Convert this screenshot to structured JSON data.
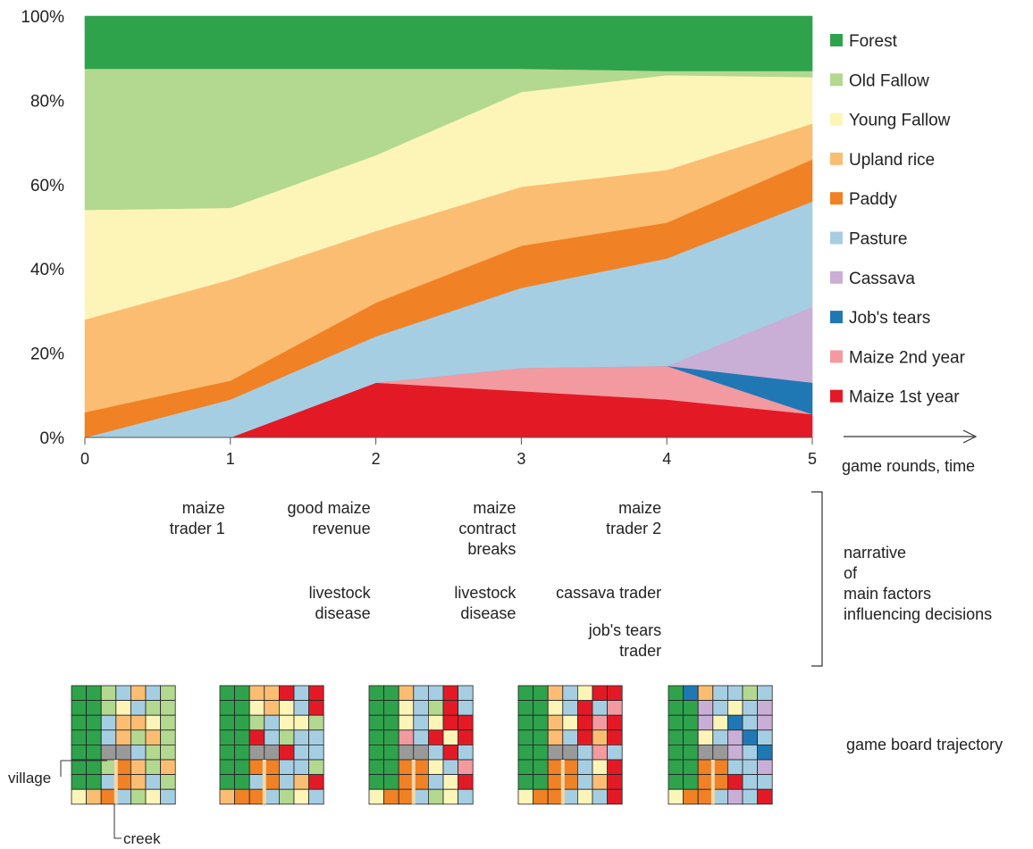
{
  "chart_data": {
    "type": "area",
    "stacked": true,
    "x": [
      0,
      1,
      2,
      3,
      4,
      5
    ],
    "xlabel": "game rounds, time",
    "ylim": [
      0,
      100
    ],
    "y_ticks": [
      "0%",
      "20%",
      "40%",
      "60%",
      "80%",
      "100%"
    ],
    "series": [
      {
        "name": "Maize 1st year",
        "color": "#e31a26",
        "values": [
          0,
          0,
          13,
          11,
          9,
          5.5
        ]
      },
      {
        "name": "Maize 2nd year",
        "color": "#f29a9f",
        "values": [
          0,
          0,
          0,
          5.5,
          8,
          0
        ]
      },
      {
        "name": "Job's tears",
        "color": "#1f78b4",
        "values": [
          0,
          0,
          0,
          0,
          0,
          7.5
        ]
      },
      {
        "name": "Cassava",
        "color": "#c9aed6",
        "values": [
          0,
          0,
          0,
          0,
          0,
          18
        ]
      },
      {
        "name": "Pasture",
        "color": "#a6cee3",
        "values": [
          0,
          9,
          11,
          19,
          25.5,
          25
        ]
      },
      {
        "name": "Paddy",
        "color": "#f08125",
        "values": [
          6,
          4.5,
          8,
          10,
          8.5,
          10
        ]
      },
      {
        "name": "Upland rice",
        "color": "#fbbd72",
        "values": [
          22,
          24,
          17,
          14,
          12.5,
          8.5
        ]
      },
      {
        "name": "Young Fallow",
        "color": "#fdf5b8",
        "values": [
          26,
          17,
          18,
          22.5,
          22.5,
          11
        ]
      },
      {
        "name": "Old Fallow",
        "color": "#b3d88f",
        "values": [
          33.5,
          33,
          20.5,
          5.5,
          1,
          1.5
        ]
      },
      {
        "name": "Forest",
        "color": "#2ea34c",
        "values": [
          12.5,
          12.5,
          12.5,
          12.5,
          13,
          13
        ]
      }
    ],
    "legend_position": "right",
    "grid": false
  },
  "narrative": {
    "label": "narrative\nof\nmain factors\ninfluencing decisions",
    "events": [
      {
        "x": 1,
        "text": "maize\ntrader 1"
      },
      {
        "x": 2,
        "text": "good maize\nrevenue"
      },
      {
        "x": 2,
        "text": "livestock\ndisease"
      },
      {
        "x": 3,
        "text": "maize\ncontract\nbreaks"
      },
      {
        "x": 3,
        "text": "livestock\ndisease"
      },
      {
        "x": 4,
        "text": "maize\ntrader 2"
      },
      {
        "x": 4,
        "text": "cassava trader"
      },
      {
        "x": 4,
        "text": "job's tears\ntrader"
      }
    ]
  },
  "boards": {
    "label": "game board trajectory",
    "village_label": "village",
    "creek_label": "creek",
    "colors": {
      "F": "#2ea34c",
      "O": "#b3d88f",
      "Y": "#fdf5b8",
      "U": "#fbbd72",
      "P": "#f08125",
      "S": "#a6cee3",
      "C": "#c9aed6",
      "J": "#1f78b4",
      "N": "#f29a9f",
      "M": "#e31a26",
      "V": "#999999"
    },
    "grids": [
      [
        "FFOSUSO",
        "FFOYSOO",
        "FFSUUYO",
        "FFSUOUO",
        "FFVVSOO",
        "FFOPUOU",
        "FFSPUSO",
        "YUPSOYS"
      ],
      [
        "FFUUMSM",
        "FFYUYSM",
        "FFOSYYO",
        "FFMSOSS",
        "FFVVMSS",
        "FFPPSSO",
        "FFSPSUM",
        "UPPSOYS"
      ],
      [
        "FFUSSMS",
        "FFYSOMS",
        "FFYSYMM",
        "FFNSMYM",
        "FFVVSMS",
        "FFPPYSN",
        "FFPPSYM",
        "YPPSOYS"
      ],
      [
        "FFUSYMM",
        "FFYSMSN",
        "FFUYMNM",
        "FFUSMUM",
        "FFVVSNS",
        "FFPPSYM",
        "FFPPSUM",
        "YPPSYSM"
      ],
      [
        "FJUSSOS",
        "FFCSYSC",
        "FFCYJSC",
        "FFYSCJS",
        "FFVVCSJ",
        "FFPPSSC",
        "FFPPMSS",
        "YPPSCSM"
      ]
    ]
  }
}
